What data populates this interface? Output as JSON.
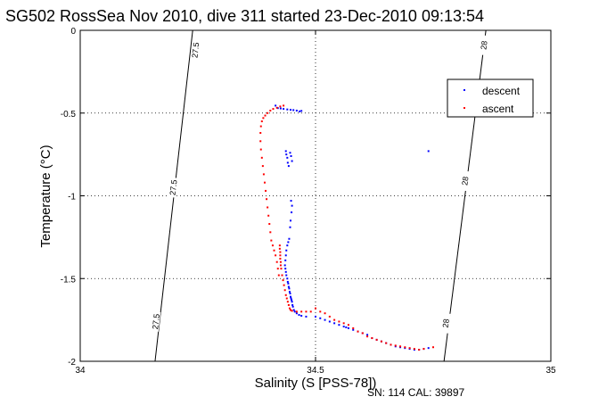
{
  "chart_data": {
    "type": "scatter",
    "title": "SG502 RossSea Nov 2010, dive 311 started 23-Dec-2010 09:13:54",
    "xlabel": "Salinity (S [PSS-78])",
    "ylabel": "Temperature (°C)",
    "xlim": [
      34,
      35
    ],
    "ylim": [
      -2,
      0
    ],
    "xticks": [
      34,
      34.5,
      35
    ],
    "xtick_labels": [
      "34",
      "34.5",
      "35"
    ],
    "yticks": [
      -2,
      -1.5,
      -1,
      -0.5,
      0
    ],
    "ytick_labels": [
      "-2",
      "-1.5",
      "-1",
      "-0.5",
      "0"
    ],
    "grid": true,
    "grid_style": "dotted",
    "legend_position": "top-right",
    "footer": "SN: 114  CAL: 39897",
    "isopycnals": [
      {
        "label": "27.5",
        "label_color": "#000000",
        "points": [
          [
            34.239,
            0
          ],
          [
            34.159,
            -2
          ]
        ],
        "label_at": [
          [
            34.245,
            -0.12
          ],
          [
            34.198,
            -0.95
          ],
          [
            34.161,
            -1.76
          ]
        ]
      },
      {
        "label": "28",
        "label_color": "#000000",
        "points": [
          [
            34.862,
            0
          ],
          [
            34.773,
            -2
          ]
        ],
        "label_at": [
          [
            34.858,
            -0.09
          ],
          [
            34.818,
            -0.91
          ],
          [
            34.777,
            -1.77
          ]
        ]
      }
    ],
    "series": [
      {
        "name": "descent",
        "color": "#0000ff",
        "points": [
          [
            34.415,
            -0.455
          ],
          [
            34.42,
            -0.47
          ],
          [
            34.426,
            -0.472
          ],
          [
            34.432,
            -0.475
          ],
          [
            34.44,
            -0.478
          ],
          [
            34.447,
            -0.48
          ],
          [
            34.453,
            -0.482
          ],
          [
            34.46,
            -0.485
          ],
          [
            34.466,
            -0.49
          ],
          [
            34.47,
            -0.487
          ],
          [
            34.437,
            -0.73
          ],
          [
            34.438,
            -0.75
          ],
          [
            34.44,
            -0.77
          ],
          [
            34.441,
            -0.8
          ],
          [
            34.443,
            -0.82
          ],
          [
            34.446,
            -0.74
          ],
          [
            34.448,
            -0.76
          ],
          [
            34.45,
            -0.79
          ],
          [
            34.448,
            -1.03
          ],
          [
            34.45,
            -1.06
          ],
          [
            34.449,
            -1.1
          ],
          [
            34.447,
            -1.15
          ],
          [
            34.446,
            -1.19
          ],
          [
            34.444,
            -1.26
          ],
          [
            34.442,
            -1.28
          ],
          [
            34.44,
            -1.3
          ],
          [
            34.438,
            -1.33
          ],
          [
            34.437,
            -1.36
          ],
          [
            34.436,
            -1.39
          ],
          [
            34.435,
            -1.42
          ],
          [
            34.436,
            -1.44
          ],
          [
            34.437,
            -1.46
          ],
          [
            34.438,
            -1.48
          ],
          [
            34.44,
            -1.5
          ],
          [
            34.441,
            -1.52
          ],
          [
            34.442,
            -1.53
          ],
          [
            34.443,
            -1.55
          ],
          [
            34.444,
            -1.56
          ],
          [
            34.445,
            -1.58
          ],
          [
            34.446,
            -1.59
          ],
          [
            34.447,
            -1.61
          ],
          [
            34.448,
            -1.62
          ],
          [
            34.449,
            -1.63
          ],
          [
            34.45,
            -1.64
          ],
          [
            34.451,
            -1.66
          ],
          [
            34.452,
            -1.67
          ],
          [
            34.454,
            -1.69
          ],
          [
            34.456,
            -1.7
          ],
          [
            34.46,
            -1.71
          ],
          [
            34.465,
            -1.72
          ],
          [
            34.47,
            -1.725
          ],
          [
            34.48,
            -1.73
          ],
          [
            34.5,
            -1.73
          ],
          [
            34.51,
            -1.74
          ],
          [
            34.52,
            -1.75
          ],
          [
            34.53,
            -1.76
          ],
          [
            34.54,
            -1.77
          ],
          [
            34.55,
            -1.78
          ],
          [
            34.56,
            -1.79
          ],
          [
            34.565,
            -1.795
          ],
          [
            34.57,
            -1.8
          ],
          [
            34.58,
            -1.81
          ],
          [
            34.59,
            -1.82
          ],
          [
            34.6,
            -1.83
          ],
          [
            34.61,
            -1.84
          ],
          [
            34.62,
            -1.86
          ],
          [
            34.63,
            -1.87
          ],
          [
            34.64,
            -1.88
          ],
          [
            34.65,
            -1.89
          ],
          [
            34.66,
            -1.9
          ],
          [
            34.67,
            -1.91
          ],
          [
            34.68,
            -1.915
          ],
          [
            34.69,
            -1.92
          ],
          [
            34.7,
            -1.925
          ],
          [
            34.71,
            -1.93
          ],
          [
            34.72,
            -1.93
          ],
          [
            34.73,
            -1.925
          ],
          [
            34.74,
            -1.92
          ],
          [
            34.74,
            -0.73
          ]
        ]
      },
      {
        "name": "ascent",
        "color": "#ff0000",
        "points": [
          [
            34.432,
            -0.455
          ],
          [
            34.425,
            -0.46
          ],
          [
            34.418,
            -0.468
          ],
          [
            34.41,
            -0.475
          ],
          [
            34.404,
            -0.485
          ],
          [
            34.398,
            -0.5
          ],
          [
            34.393,
            -0.515
          ],
          [
            34.389,
            -0.53
          ],
          [
            34.386,
            -0.55
          ],
          [
            34.384,
            -0.58
          ],
          [
            34.383,
            -0.62
          ],
          [
            34.383,
            -0.67
          ],
          [
            34.384,
            -0.72
          ],
          [
            34.386,
            -0.77
          ],
          [
            34.388,
            -0.82
          ],
          [
            34.39,
            -0.87
          ],
          [
            34.392,
            -0.92
          ],
          [
            34.394,
            -0.97
          ],
          [
            34.396,
            -1.02
          ],
          [
            34.398,
            -1.07
          ],
          [
            34.4,
            -1.12
          ],
          [
            34.402,
            -1.17
          ],
          [
            34.404,
            -1.22
          ],
          [
            34.406,
            -1.27
          ],
          [
            34.409,
            -1.3
          ],
          [
            34.412,
            -1.33
          ],
          [
            34.415,
            -1.36
          ],
          [
            34.418,
            -1.4
          ],
          [
            34.42,
            -1.44
          ],
          [
            34.422,
            -1.48
          ],
          [
            34.424,
            -1.3
          ],
          [
            34.424,
            -1.32
          ],
          [
            34.425,
            -1.34
          ],
          [
            34.425,
            -1.36
          ],
          [
            34.425,
            -1.38
          ],
          [
            34.426,
            -1.4
          ],
          [
            34.426,
            -1.42
          ],
          [
            34.427,
            -1.44
          ],
          [
            34.429,
            -1.48
          ],
          [
            34.431,
            -1.51
          ],
          [
            34.433,
            -1.54
          ],
          [
            34.435,
            -1.57
          ],
          [
            34.437,
            -1.6
          ],
          [
            34.439,
            -1.62
          ],
          [
            34.441,
            -1.64
          ],
          [
            34.443,
            -1.66
          ],
          [
            34.445,
            -1.68
          ],
          [
            34.447,
            -1.69
          ],
          [
            34.45,
            -1.695
          ],
          [
            34.46,
            -1.7
          ],
          [
            34.47,
            -1.7
          ],
          [
            34.48,
            -1.7
          ],
          [
            34.49,
            -1.7
          ],
          [
            34.5,
            -1.68
          ],
          [
            34.51,
            -1.7
          ],
          [
            34.52,
            -1.71
          ],
          [
            34.53,
            -1.73
          ],
          [
            34.54,
            -1.75
          ],
          [
            34.55,
            -1.76
          ],
          [
            34.56,
            -1.77
          ],
          [
            34.57,
            -1.78
          ],
          [
            34.58,
            -1.8
          ],
          [
            34.59,
            -1.82
          ],
          [
            34.6,
            -1.83
          ],
          [
            34.61,
            -1.85
          ],
          [
            34.62,
            -1.86
          ],
          [
            34.63,
            -1.87
          ],
          [
            34.64,
            -1.88
          ],
          [
            34.65,
            -1.89
          ],
          [
            34.66,
            -1.9
          ],
          [
            34.67,
            -1.905
          ],
          [
            34.68,
            -1.91
          ],
          [
            34.69,
            -1.915
          ],
          [
            34.7,
            -1.92
          ],
          [
            34.71,
            -1.925
          ],
          [
            34.72,
            -1.93
          ],
          [
            34.73,
            -1.925
          ],
          [
            34.75,
            -1.915
          ]
        ]
      }
    ]
  }
}
